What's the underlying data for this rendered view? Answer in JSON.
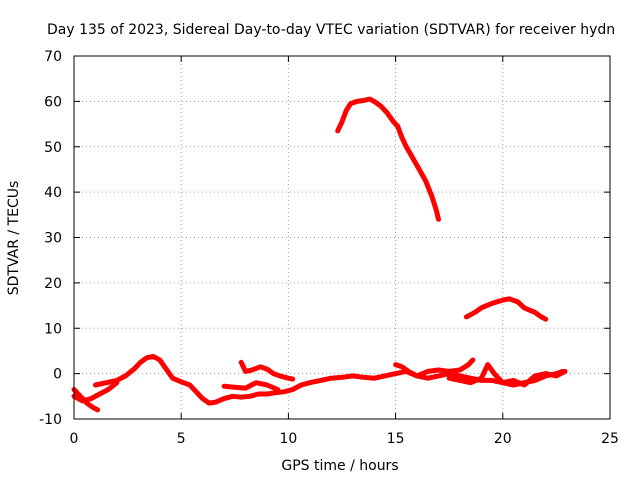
{
  "chart_data": {
    "type": "line",
    "title": "Day 135 of 2023, Sidereal Day-to-day VTEC variation (SDTVAR) for receiver hydn",
    "xlabel": "GPS time / hours",
    "ylabel": "SDTVAR / TECUs",
    "xlim": [
      0,
      25
    ],
    "ylim": [
      -10,
      70
    ],
    "xticks": [
      "0",
      "5",
      "10",
      "15",
      "20",
      "25"
    ],
    "yticks": [
      "-10",
      "0",
      "10",
      "20",
      "30",
      "40",
      "50",
      "60",
      "70"
    ],
    "xtick_values": [
      0,
      5,
      10,
      15,
      20,
      25
    ],
    "ytick_values": [
      -10,
      0,
      10,
      20,
      30,
      40,
      50,
      60,
      70
    ],
    "grid": true,
    "series_color": "#ff0000",
    "series": [
      {
        "name": "seg-1",
        "points": [
          [
            0.0,
            -3.5
          ],
          [
            0.3,
            -5.0
          ],
          [
            0.6,
            -6.5
          ],
          [
            0.9,
            -7.5
          ],
          [
            1.1,
            -8.0
          ]
        ]
      },
      {
        "name": "seg-2",
        "points": [
          [
            0.0,
            -5.0
          ],
          [
            0.4,
            -6.0
          ],
          [
            0.8,
            -5.5
          ],
          [
            1.2,
            -4.5
          ],
          [
            1.6,
            -3.5
          ],
          [
            2.0,
            -2.0
          ]
        ]
      },
      {
        "name": "seg-3",
        "points": [
          [
            1.0,
            -2.5
          ],
          [
            1.5,
            -2.0
          ],
          [
            2.0,
            -1.5
          ],
          [
            2.4,
            -0.5
          ],
          [
            2.8,
            1.0
          ],
          [
            3.1,
            2.5
          ],
          [
            3.4,
            3.5
          ],
          [
            3.7,
            3.8
          ],
          [
            4.0,
            3.0
          ],
          [
            4.3,
            1.0
          ],
          [
            4.6,
            -1.0
          ],
          [
            5.0,
            -1.8
          ],
          [
            5.4,
            -2.5
          ],
          [
            5.7,
            -4.0
          ],
          [
            6.0,
            -5.5
          ],
          [
            6.3,
            -6.5
          ],
          [
            6.6,
            -6.3
          ],
          [
            7.0,
            -5.5
          ],
          [
            7.4,
            -5.0
          ],
          [
            7.8,
            -5.2
          ],
          [
            8.2,
            -5.0
          ],
          [
            8.6,
            -4.5
          ],
          [
            9.0,
            -4.5
          ],
          [
            9.4,
            -4.2
          ],
          [
            9.8,
            -4.0
          ],
          [
            10.2,
            -3.5
          ],
          [
            10.6,
            -2.5
          ],
          [
            11.0,
            -2.0
          ],
          [
            11.5,
            -1.5
          ],
          [
            12.0,
            -1.0
          ],
          [
            12.5,
            -0.8
          ],
          [
            13.0,
            -0.5
          ],
          [
            13.5,
            -0.8
          ],
          [
            14.0,
            -1.0
          ],
          [
            14.5,
            -0.5
          ],
          [
            15.0,
            0.0
          ],
          [
            15.5,
            0.5
          ],
          [
            16.0,
            -0.5
          ],
          [
            16.5,
            -1.0
          ],
          [
            17.0,
            -0.5
          ],
          [
            17.5,
            0.0
          ],
          [
            18.0,
            -0.5
          ],
          [
            18.5,
            -1.0
          ],
          [
            19.0,
            -1.5
          ],
          [
            19.5,
            -1.5
          ],
          [
            20.0,
            -2.0
          ],
          [
            20.5,
            -2.5
          ],
          [
            21.0,
            -2.0
          ],
          [
            21.5,
            -1.5
          ],
          [
            22.0,
            -0.5
          ],
          [
            22.5,
            0.0
          ],
          [
            22.8,
            0.5
          ]
        ]
      },
      {
        "name": "seg-4",
        "points": [
          [
            7.8,
            2.5
          ],
          [
            8.0,
            0.5
          ],
          [
            8.3,
            0.8
          ],
          [
            8.7,
            1.5
          ],
          [
            9.0,
            1.0
          ],
          [
            9.3,
            0.0
          ],
          [
            9.6,
            -0.5
          ],
          [
            10.0,
            -1.0
          ],
          [
            10.2,
            -1.2
          ]
        ]
      },
      {
        "name": "seg-5",
        "points": [
          [
            7.0,
            -2.8
          ],
          [
            7.5,
            -3.0
          ],
          [
            8.0,
            -3.2
          ],
          [
            8.5,
            -2.0
          ],
          [
            9.0,
            -2.5
          ],
          [
            9.5,
            -3.5
          ]
        ]
      },
      {
        "name": "seg-6",
        "points": [
          [
            15.0,
            2.0
          ],
          [
            15.3,
            1.5
          ],
          [
            15.6,
            0.5
          ],
          [
            16.0,
            -0.5
          ],
          [
            16.5,
            0.5
          ],
          [
            17.0,
            0.8
          ],
          [
            17.5,
            0.5
          ],
          [
            18.0,
            0.8
          ],
          [
            18.4,
            2.0
          ],
          [
            18.6,
            3.0
          ]
        ]
      },
      {
        "name": "seg-7",
        "points": [
          [
            17.5,
            -1.0
          ],
          [
            18.0,
            -1.5
          ],
          [
            18.5,
            -2.0
          ],
          [
            19.0,
            -1.0
          ],
          [
            19.3,
            2.0
          ],
          [
            19.6,
            0.0
          ],
          [
            20.0,
            -2.0
          ],
          [
            20.5,
            -1.5
          ],
          [
            21.0,
            -2.5
          ],
          [
            21.5,
            -0.5
          ],
          [
            22.0,
            0.0
          ],
          [
            22.5,
            -0.5
          ],
          [
            22.9,
            0.5
          ]
        ]
      },
      {
        "name": "seg-8",
        "points": [
          [
            12.3,
            53.5
          ],
          [
            12.5,
            55.5
          ],
          [
            12.7,
            58.0
          ],
          [
            12.9,
            59.5
          ],
          [
            13.2,
            60.0
          ],
          [
            13.5,
            60.2
          ],
          [
            13.8,
            60.5
          ],
          [
            14.0,
            60.0
          ],
          [
            14.3,
            59.0
          ],
          [
            14.6,
            57.5
          ],
          [
            14.9,
            55.5
          ],
          [
            15.1,
            54.5
          ],
          [
            15.3,
            52.0
          ],
          [
            15.5,
            50.0
          ],
          [
            15.8,
            47.5
          ],
          [
            16.1,
            45.0
          ],
          [
            16.4,
            42.5
          ],
          [
            16.7,
            39.0
          ],
          [
            16.9,
            36.0
          ],
          [
            17.0,
            34.0
          ]
        ]
      },
      {
        "name": "seg-9",
        "points": [
          [
            18.3,
            12.5
          ],
          [
            18.7,
            13.5
          ],
          [
            19.0,
            14.5
          ],
          [
            19.5,
            15.5
          ],
          [
            20.0,
            16.2
          ],
          [
            20.3,
            16.5
          ],
          [
            20.7,
            15.8
          ],
          [
            21.0,
            14.5
          ],
          [
            21.5,
            13.5
          ],
          [
            21.8,
            12.5
          ],
          [
            22.0,
            12.0
          ]
        ]
      }
    ]
  }
}
